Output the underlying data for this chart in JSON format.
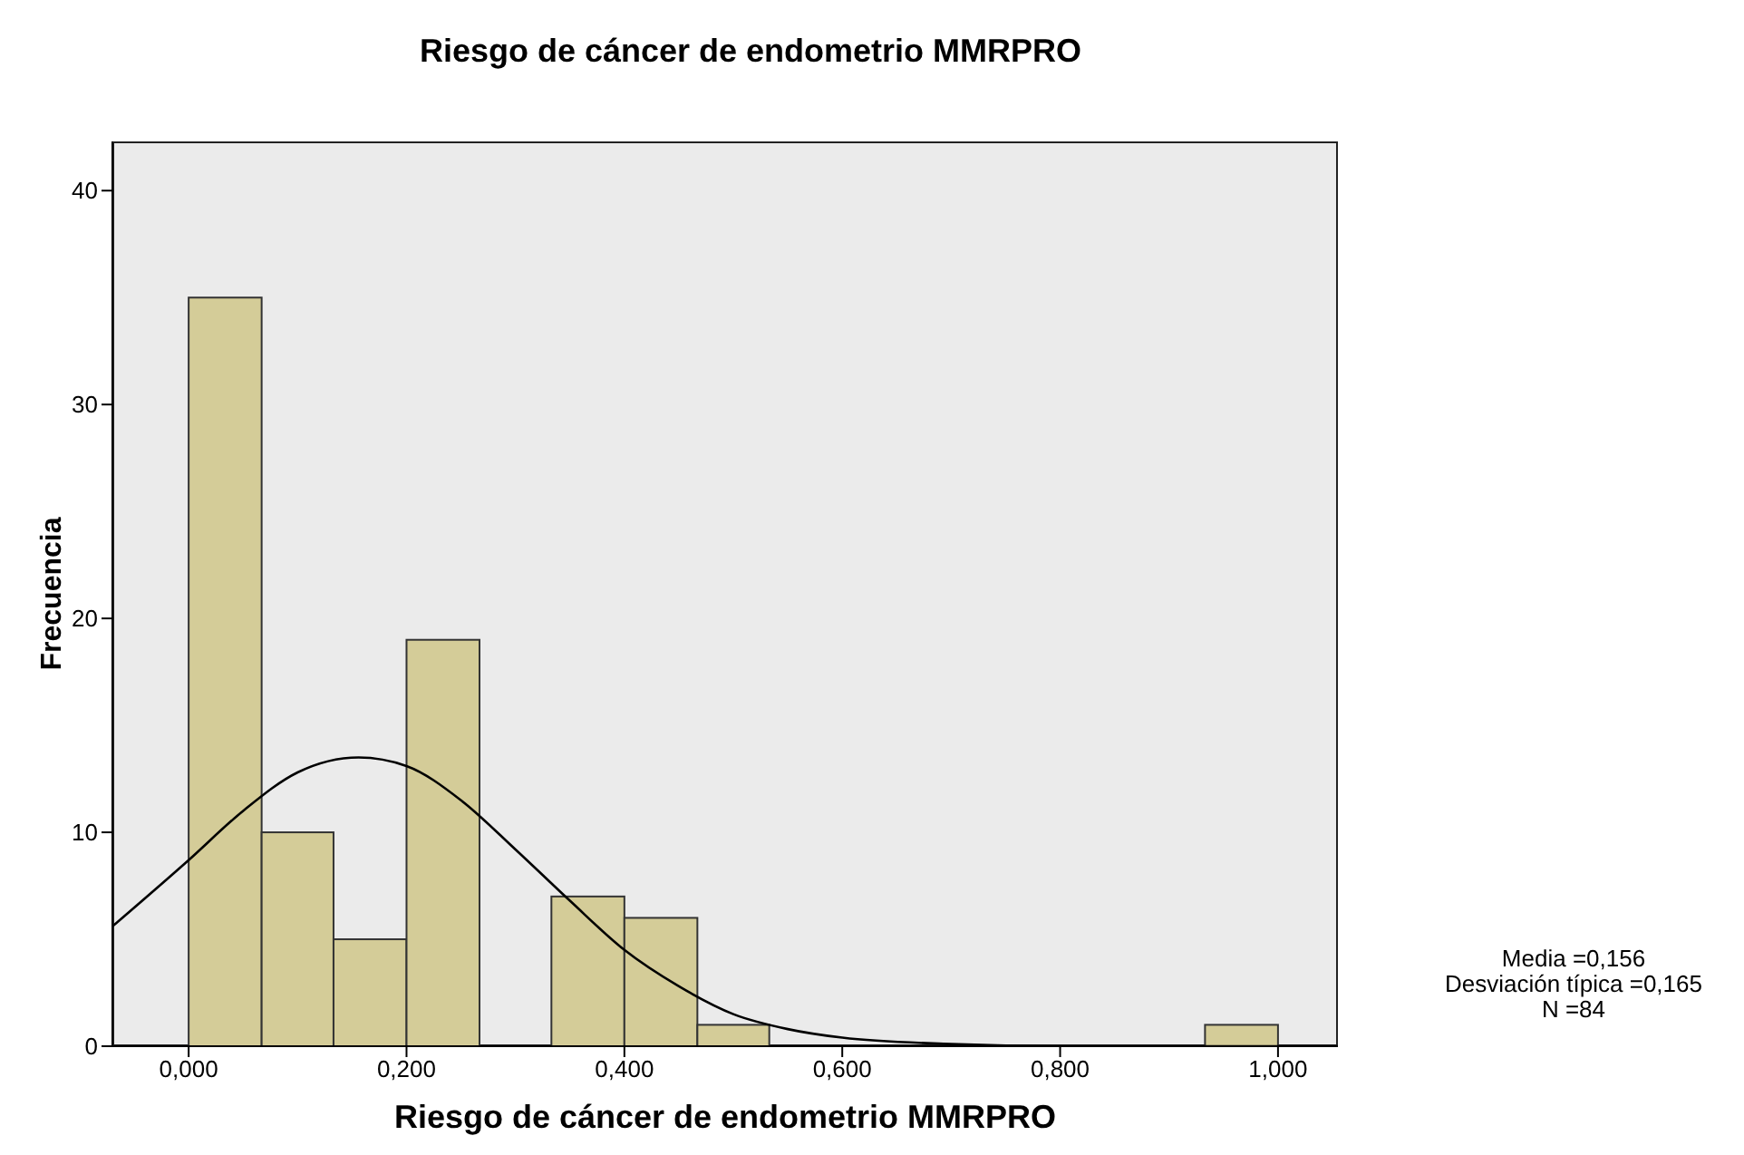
{
  "chart_data": {
    "type": "histogram",
    "title": "Riesgo de cáncer de endometrio MMRPRO",
    "xlabel": "Riesgo de cáncer de endometrio MMRPRO",
    "ylabel": "Frecuencia",
    "bins": [
      0,
      0.067,
      0.133,
      0.2,
      0.267,
      0.333,
      0.4,
      0.467,
      0.533,
      0.933,
      1
    ],
    "values": [
      35,
      10,
      5,
      19,
      0,
      7,
      6,
      1,
      0,
      1
    ],
    "color": "#d4cc98",
    "series": [
      {
        "type": "line",
        "color": "#000000",
        "x": [
          -0.07,
          0,
          0.05,
          0.1,
          0.156,
          0.2,
          0.25,
          0.3,
          0.35,
          0.4,
          0.45,
          0.5,
          0.55,
          0.6,
          0.7,
          0.8,
          1.0,
          1.055
        ],
        "values": [
          5.6,
          8.7,
          11,
          12.8,
          13.5,
          13.1,
          11.5,
          9.2,
          6.8,
          4.5,
          2.8,
          1.5,
          0.8,
          0.4,
          0.1,
          0,
          0,
          0
        ]
      }
    ],
    "xlim": [
      -0.07,
      1.055
    ],
    "xticks": [
      {
        "value": 0,
        "label": "0,000"
      },
      {
        "value": 0.2,
        "label": "0,200"
      },
      {
        "value": 0.4,
        "label": "0,400"
      },
      {
        "value": 0.6,
        "label": "0,600"
      },
      {
        "value": 0.8,
        "label": "0,800"
      },
      {
        "value": 1,
        "label": "1,000"
      }
    ],
    "ylim": [
      0,
      42.3
    ],
    "yticks": [
      0,
      10,
      20,
      30,
      40
    ],
    "annotations": [
      "Media =0,156",
      "Desviación típica =0,165",
      "N =84"
    ]
  }
}
